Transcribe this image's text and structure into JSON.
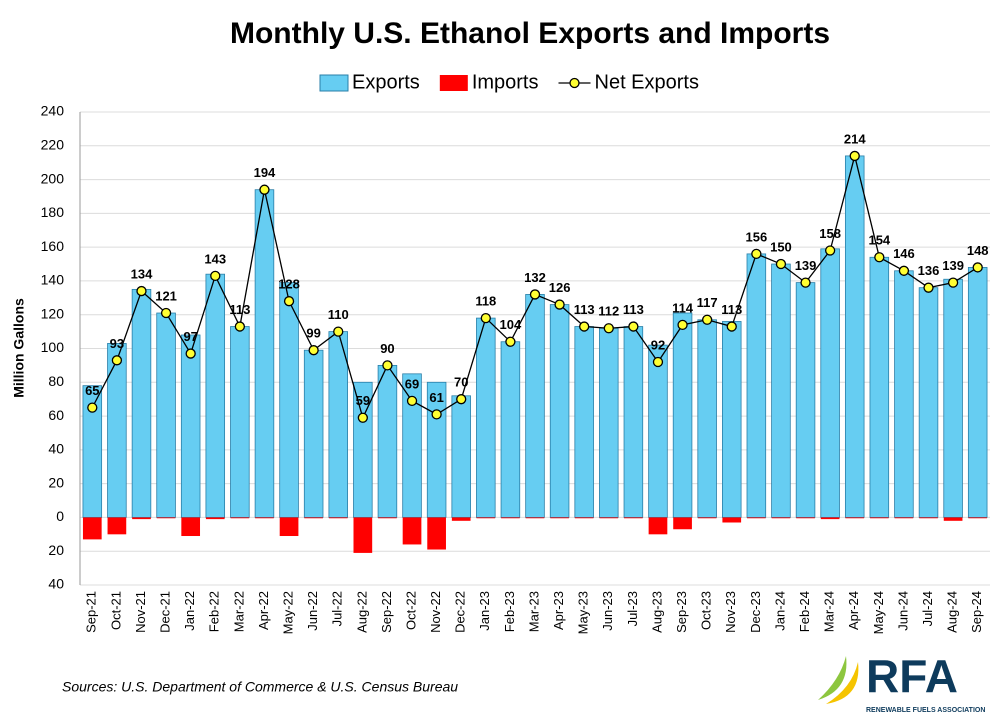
{
  "chart_data": {
    "type": "bar",
    "title": "Monthly U.S. Ethanol Exports and Imports",
    "y_label": "Million Gallons",
    "source": "Sources: U.S. Department of Commerce & U.S. Census Bureau",
    "logo": {
      "text": "RFA",
      "subtitle": "RENEWABLE FUELS ASSOCIATION"
    },
    "categories": [
      "Sep-21",
      "Oct-21",
      "Nov-21",
      "Dec-21",
      "Jan-22",
      "Feb-22",
      "Mar-22",
      "Apr-22",
      "May-22",
      "Jun-22",
      "Jul-22",
      "Aug-22",
      "Sep-22",
      "Oct-22",
      "Nov-22",
      "Dec-22",
      "Jan-23",
      "Feb-23",
      "Mar-23",
      "Apr-23",
      "May-23",
      "Jun-23",
      "Jul-23",
      "Aug-23",
      "Sep-23",
      "Oct-23",
      "Nov-23",
      "Dec-23",
      "Jan-24",
      "Feb-24",
      "Mar-24",
      "Apr-24",
      "May-24",
      "Jun-24",
      "Jul-24",
      "Aug-24",
      "Sep-24"
    ],
    "series": [
      {
        "name": "Exports",
        "type": "bar",
        "color": "#66cdf2",
        "values": [
          78,
          103,
          135,
          121,
          108,
          144,
          113,
          194,
          139,
          99,
          110,
          80,
          90,
          85,
          80,
          72,
          118,
          104,
          132,
          126,
          113,
          112,
          113,
          102,
          121,
          117,
          116,
          156,
          150,
          139,
          159,
          214,
          154,
          146,
          136,
          141,
          148
        ]
      },
      {
        "name": "Imports",
        "type": "bar",
        "color": "#ff0000",
        "values": [
          -13,
          -10,
          -1,
          -0.5,
          -11,
          -1,
          -0.5,
          -0.5,
          -11,
          -0.5,
          -0.5,
          -21,
          -0.5,
          -16,
          -19,
          -2,
          -0.5,
          -0.5,
          -0.5,
          -0.5,
          -0.5,
          -0.5,
          -0.5,
          -10,
          -7,
          -0.5,
          -3,
          -0.5,
          -0.5,
          -0.5,
          -1,
          -0.5,
          -0.5,
          -0.5,
          -0.5,
          -2,
          -0.5
        ]
      },
      {
        "name": "Net Exports",
        "type": "line",
        "color": "#000000",
        "marker_color": "#ffff33",
        "values": [
          65,
          93,
          134,
          121,
          97,
          143,
          113,
          194,
          128,
          99,
          110,
          59,
          90,
          69,
          61,
          70,
          118,
          104,
          132,
          126,
          113,
          112,
          113,
          92,
          114,
          117,
          113,
          156,
          150,
          139,
          158,
          214,
          154,
          146,
          136,
          139,
          148
        ]
      }
    ],
    "ylim": [
      -40,
      240
    ],
    "yticks": [
      {
        "value": -40,
        "label": "40"
      },
      {
        "value": -20,
        "label": "20"
      },
      0,
      20,
      40,
      60,
      80,
      100,
      120,
      140,
      160,
      180,
      200,
      220,
      240
    ],
    "grid": true,
    "legend": "top"
  }
}
